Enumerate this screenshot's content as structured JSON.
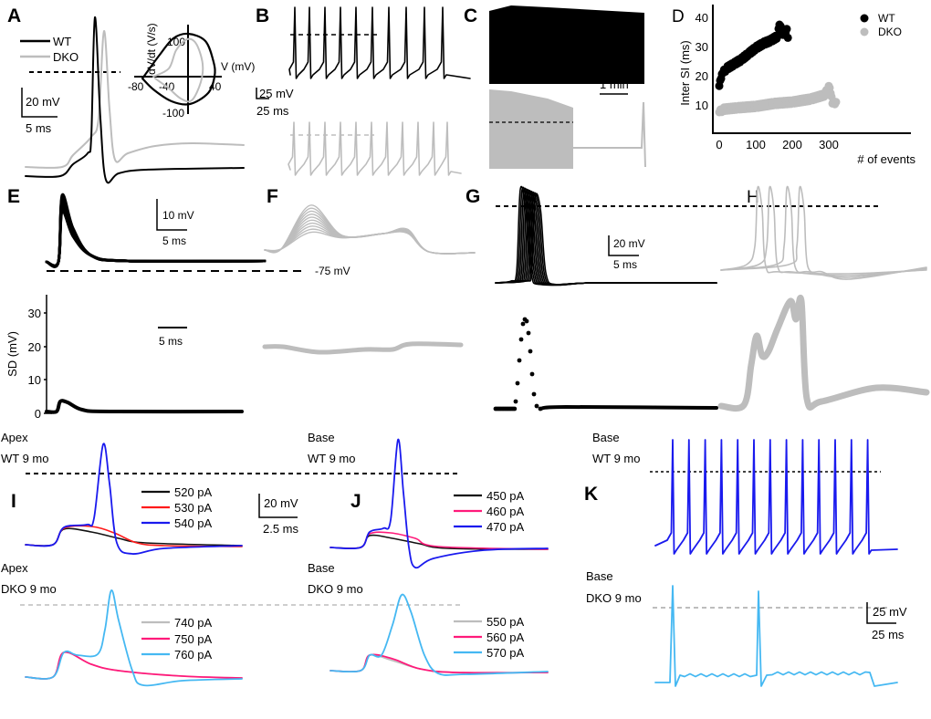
{
  "panels": {
    "A": {
      "letter": "A",
      "legend": [
        "WT",
        "DKO"
      ],
      "scale_v": "20 mV",
      "scale_h": "5 ms",
      "inset": {
        "xlabel": "V (mV)",
        "ylabel": "dV/dt (V/s)",
        "xticks": [
          "-80",
          "-40",
          "40"
        ],
        "yticks": [
          "100",
          "-100"
        ]
      }
    },
    "B": {
      "letter": "B",
      "scale_v": "25 mV",
      "scale_h": "25 ms"
    },
    "C": {
      "letter": "C",
      "scale_h": "1 min"
    },
    "D": {
      "letter": "D"
    },
    "E": {
      "letter": "E",
      "scale_v": "10 mV",
      "scale_h": "5 ms",
      "ref_label": "-75 mV",
      "sd_scale_h": "5 ms"
    },
    "F": {
      "letter": "F"
    },
    "G": {
      "letter": "G",
      "scale_v": "20 mV",
      "scale_h": "5 ms"
    },
    "H": {
      "letter": "H"
    },
    "I": {
      "letter": "I",
      "top_label": [
        "Apex",
        "WT 9 mo"
      ],
      "bottom_label": [
        "Apex",
        "DKO 9 mo"
      ],
      "top_legend": [
        "520 pA",
        "530 pA",
        "540 pA"
      ],
      "bottom_legend": [
        "740 pA",
        "750 pA",
        "760 pA"
      ],
      "scale_v": "20 mV",
      "scale_h": "2.5 ms"
    },
    "J": {
      "letter": "J",
      "top_label": [
        "Base",
        "WT 9 mo"
      ],
      "bottom_label": [
        "Base",
        "DKO 9 mo"
      ],
      "top_legend": [
        "450 pA",
        "460 pA",
        "470 pA"
      ],
      "bottom_legend": [
        "550 pA",
        "560 pA",
        "570 pA"
      ]
    },
    "K": {
      "letter": "K",
      "top_label": [
        "Base",
        "WT 9 mo"
      ],
      "bottom_label": [
        "Base",
        "DKO 9 mo"
      ],
      "scale_v": "25 mV",
      "scale_h": "25 ms"
    }
  },
  "colors": {
    "wt": "#000000",
    "dko": "#bdbdbd",
    "black": "#111111",
    "red": "#ff1a1a",
    "blue": "#1a1aee",
    "gray": "#bdbdbd",
    "pink": "#ff1a7a",
    "light_blue": "#45b8f2"
  },
  "chart_data": [
    {
      "panel": "D",
      "type": "scatter",
      "xlabel": "# of events",
      "ylabel": "Inter SI (ms)",
      "xlim": [
        0,
        350
      ],
      "ylim": [
        0,
        45
      ],
      "xticks": [
        "0",
        "100",
        "200",
        "300"
      ],
      "yticks": [
        "10",
        "20",
        "30",
        "40"
      ],
      "legend_position": "top-right",
      "series": [
        {
          "name": "WT",
          "color": "#000000",
          "points": [
            [
              0,
              16.5
            ],
            [
              5,
              19
            ],
            [
              10,
              21
            ],
            [
              20,
              22.5
            ],
            [
              40,
              24
            ],
            [
              60,
              25.5
            ],
            [
              80,
              27.5
            ],
            [
              100,
              29.5
            ],
            [
              120,
              31
            ],
            [
              140,
              32
            ],
            [
              160,
              33.5
            ],
            [
              165,
              37.5
            ],
            [
              175,
              34
            ],
            [
              185,
              36
            ],
            [
              188,
              33
            ]
          ]
        },
        {
          "name": "DKO",
          "color": "#bdbdbd",
          "points": [
            [
              0,
              7.5
            ],
            [
              10,
              8.5
            ],
            [
              50,
              9
            ],
            [
              100,
              9.5
            ],
            [
              150,
              10.5
            ],
            [
              200,
              11
            ],
            [
              250,
              12
            ],
            [
              290,
              13.5
            ],
            [
              300,
              16.5
            ],
            [
              305,
              14
            ],
            [
              310,
              10.5
            ],
            [
              320,
              11
            ]
          ]
        }
      ]
    },
    {
      "panel": "E-lower",
      "type": "line",
      "ylabel": "SD (mV)",
      "ylim": [
        0,
        35
      ],
      "yticks": [
        "0",
        "10",
        "20",
        "30"
      ]
    }
  ]
}
